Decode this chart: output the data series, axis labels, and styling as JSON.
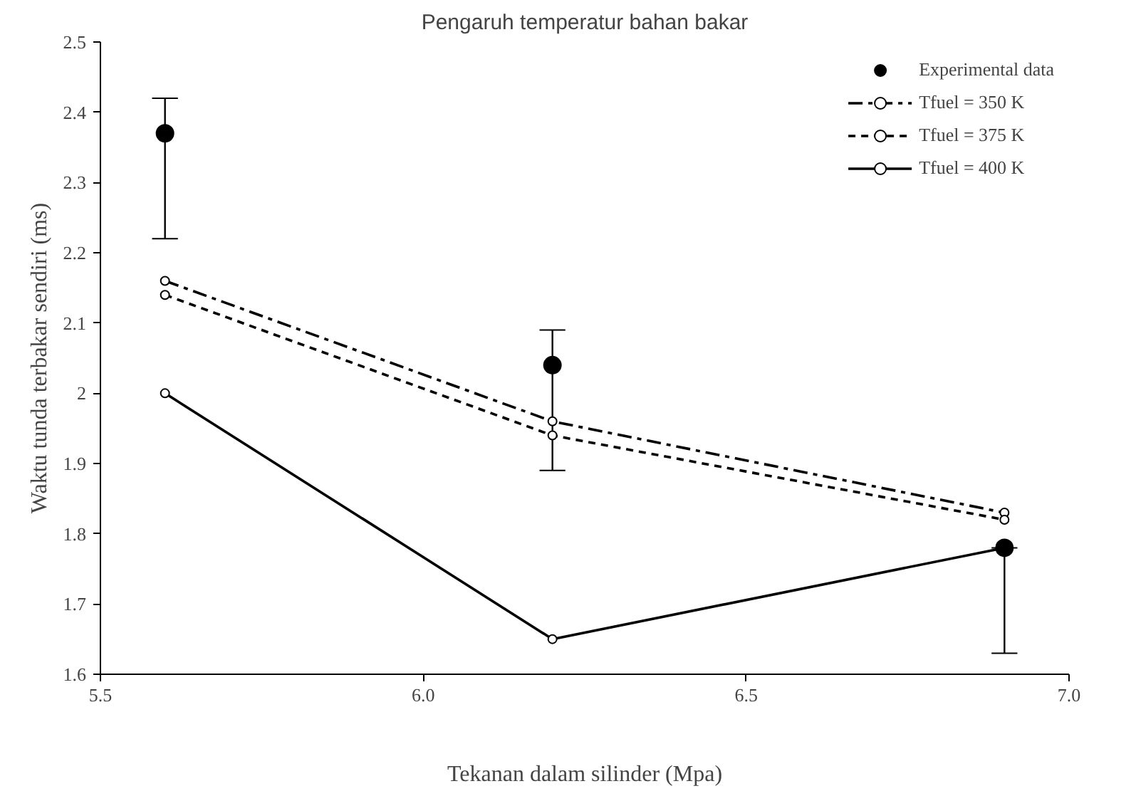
{
  "chart_data": {
    "type": "line",
    "title": "Pengaruh temperatur bahan bakar",
    "xlabel": "Tekanan dalam silinder (Mpa)",
    "ylabel": "Waktu tunda terbakar sendiri (ms)",
    "x": [
      5.6,
      6.2,
      6.9
    ],
    "series": [
      {
        "name": "Experimental data",
        "type": "scatter",
        "color": "#000000",
        "marker": "circle",
        "values": [
          2.37,
          2.04,
          1.78
        ],
        "errors": [
          [
            2.22,
            2.42
          ],
          [
            1.89,
            2.09
          ],
          [
            1.63,
            1.78
          ]
        ]
      },
      {
        "name": "Tfuel = 350 K",
        "color": "#000000",
        "marker": "circle",
        "line_style": "dashed",
        "values": [
          2.16,
          1.96,
          1.83
        ]
      },
      {
        "name": "Tfuel = 375 K",
        "color": "#000000",
        "marker": "circle",
        "line_style": "dotted",
        "values": [
          2.14,
          1.94,
          1.82
        ]
      },
      {
        "name": "Tfuel = 400 K",
        "color": "#000000",
        "marker": "circle",
        "line_style": "solid",
        "values": [
          2.0,
          1.65,
          1.78
        ]
      }
    ],
    "xlim": [
      5.5,
      7.0
    ],
    "xticks": [
      {
        "value": 5.5,
        "label": "5.5"
      },
      {
        "value": 6.0,
        "label": "6.0"
      },
      {
        "value": 6.5,
        "label": "6.5"
      },
      {
        "value": 7.0,
        "label": "7.0"
      }
    ],
    "ylim": [
      1.6,
      2.5
    ],
    "yticks": [
      1.6,
      1.7,
      1.8,
      1.9,
      2,
      2.1,
      2.2,
      2.3,
      2.4,
      2.5
    ],
    "grid": false,
    "legend": "top right"
  }
}
